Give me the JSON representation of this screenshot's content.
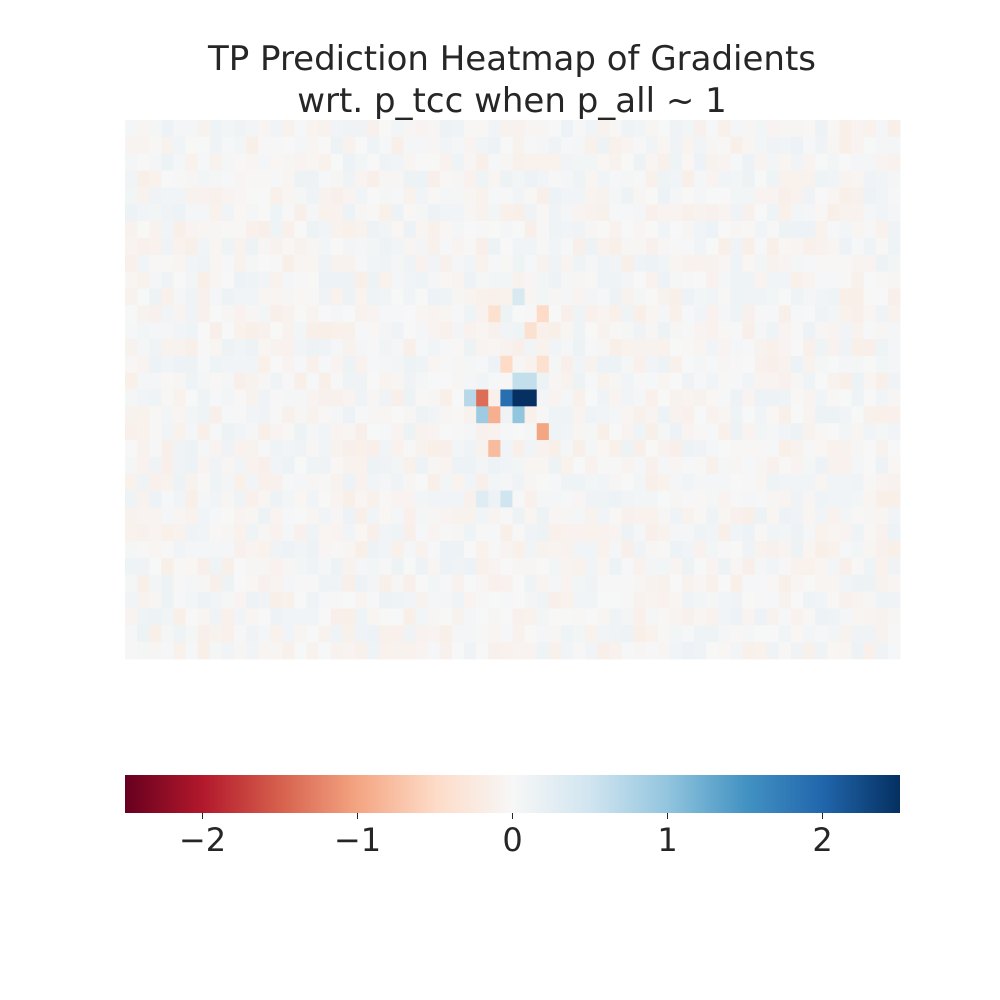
{
  "chart_data": {
    "type": "heatmap",
    "title_lines": [
      "TP Prediction Heatmap of Gradients",
      "wrt. p_tcc when p_all ~ 1"
    ],
    "xlabel": "",
    "ylabel": "",
    "grid": false,
    "n_rows": 32,
    "n_cols": 64,
    "background_noise_amplitude": 0.15,
    "colormap": "RdBu",
    "colormap_stops": [
      "#67001f",
      "#b2182b",
      "#d6604d",
      "#f4a582",
      "#fddbc7",
      "#f7f7f7",
      "#d1e5f0",
      "#92c5de",
      "#4393c3",
      "#2166ac",
      "#053061"
    ],
    "vmin": -2.5,
    "vmax": 2.5,
    "colorbar": {
      "placement": "bottom",
      "ticks": [
        -2,
        -1,
        0,
        1,
        2
      ],
      "tick_labels": [
        "−2",
        "−1",
        "0",
        "1",
        "2"
      ]
    },
    "notable_cells": [
      {
        "row": 16,
        "col": 28,
        "value": 0.7
      },
      {
        "row": 16,
        "col": 29,
        "value": -1.4
      },
      {
        "row": 16,
        "col": 31,
        "value": 1.9
      },
      {
        "row": 16,
        "col": 32,
        "value": 2.5
      },
      {
        "row": 16,
        "col": 33,
        "value": 2.5
      },
      {
        "row": 15,
        "col": 32,
        "value": 0.6
      },
      {
        "row": 15,
        "col": 33,
        "value": 0.6
      },
      {
        "row": 14,
        "col": 31,
        "value": -0.5
      },
      {
        "row": 14,
        "col": 34,
        "value": -0.4
      },
      {
        "row": 17,
        "col": 29,
        "value": 0.9
      },
      {
        "row": 17,
        "col": 30,
        "value": -0.9
      },
      {
        "row": 17,
        "col": 32,
        "value": 1.0
      },
      {
        "row": 18,
        "col": 34,
        "value": -1.0
      },
      {
        "row": 19,
        "col": 30,
        "value": -0.8
      },
      {
        "row": 11,
        "col": 30,
        "value": -0.4
      },
      {
        "row": 12,
        "col": 33,
        "value": -0.4
      },
      {
        "row": 10,
        "col": 32,
        "value": 0.4
      },
      {
        "row": 11,
        "col": 34,
        "value": -0.5
      },
      {
        "row": 22,
        "col": 31,
        "value": 0.5
      },
      {
        "row": 22,
        "col": 29,
        "value": 0.3
      }
    ]
  }
}
